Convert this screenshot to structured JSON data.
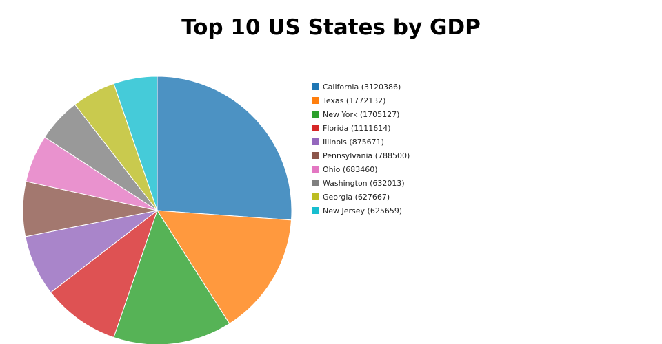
{
  "chart_data": {
    "type": "pie",
    "title": "Top 10 US States by GDP",
    "legend_position": "right",
    "start_angle": "top, clockwise",
    "slices": [
      {
        "label": "California",
        "value": 3120386,
        "color": "#1f77b4"
      },
      {
        "label": "Texas",
        "value": 1772132,
        "color": "#ff7f0e"
      },
      {
        "label": "New York",
        "value": 1705127,
        "color": "#2ca02c"
      },
      {
        "label": "Florida",
        "value": 1111614,
        "color": "#d62728"
      },
      {
        "label": "Illinois",
        "value": 875671,
        "color": "#9467bd"
      },
      {
        "label": "Pennsylvania",
        "value": 788500,
        "color": "#8c564b"
      },
      {
        "label": "Ohio",
        "value": 683460,
        "color": "#e377c2"
      },
      {
        "label": "Washington",
        "value": 632013,
        "color": "#7f7f7f"
      },
      {
        "label": "Georgia",
        "value": 627667,
        "color": "#bcbd22"
      },
      {
        "label": "New Jersey",
        "value": 625659,
        "color": "#17becf"
      }
    ]
  }
}
